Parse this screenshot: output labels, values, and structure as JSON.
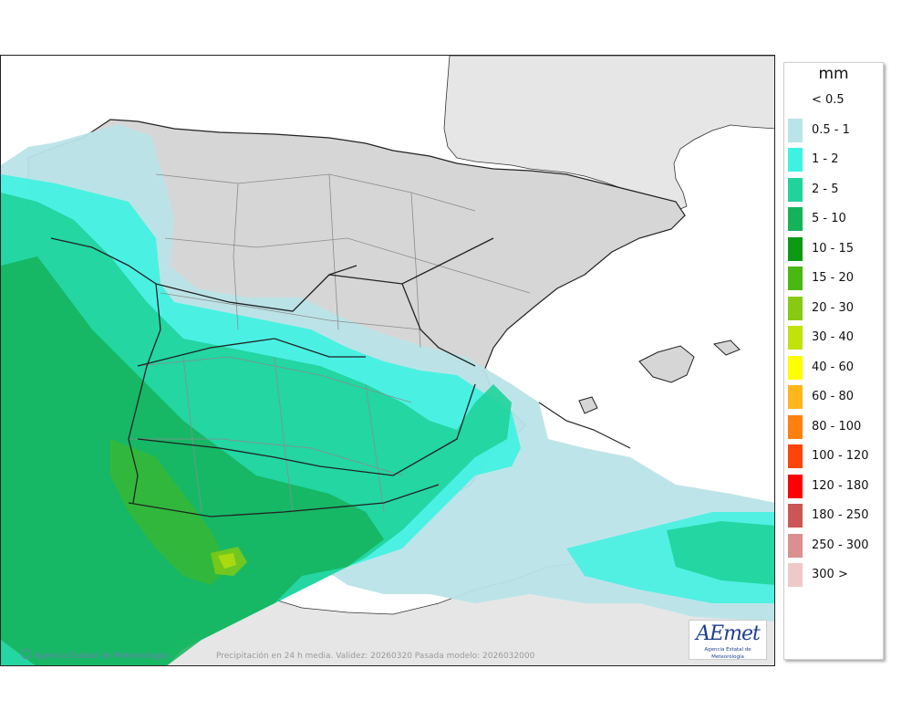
{
  "map": {
    "credit_agency": "Agencia Estatal de Meteorología",
    "caption": "Precipitación en 24 h media. Validez: 20260320 Pasada modelo: 2026032000",
    "logo_text": "AEmet",
    "logo_subtext": "Agencia Estatal de Meteorología",
    "colors": {
      "sea": "#ffffff",
      "foreign_land": "#e6e6e6",
      "relief_land": "#d9d9d9",
      "border": "#222222",
      "region_line": "#8c8c8c"
    }
  },
  "legend": {
    "unit": "mm",
    "items": [
      {
        "label": "< 0.5",
        "color": "#ffffff"
      },
      {
        "label": "0.5 - 1",
        "color": "#b9e4e8"
      },
      {
        "label": "1 - 2",
        "color": "#3ef2e2"
      },
      {
        "label": "2 - 5",
        "color": "#1fd39a"
      },
      {
        "label": "5 - 10",
        "color": "#14b35a"
      },
      {
        "label": "10 - 15",
        "color": "#0a9a14"
      },
      {
        "label": "15 - 20",
        "color": "#4bb713"
      },
      {
        "label": "20 - 30",
        "color": "#87cb10"
      },
      {
        "label": "30 - 40",
        "color": "#c2e20c"
      },
      {
        "label": "40 - 60",
        "color": "#ffff00"
      },
      {
        "label": "60 - 80",
        "color": "#ffb61a"
      },
      {
        "label": "80 - 100",
        "color": "#ff7f0f"
      },
      {
        "label": "100 - 120",
        "color": "#ff4409"
      },
      {
        "label": "120 - 180",
        "color": "#ff0000"
      },
      {
        "label": "180 - 250",
        "color": "#cc5555"
      },
      {
        "label": "250 - 300",
        "color": "#db8f8f"
      },
      {
        "label": "300 >",
        "color": "#efc9c9"
      }
    ]
  }
}
